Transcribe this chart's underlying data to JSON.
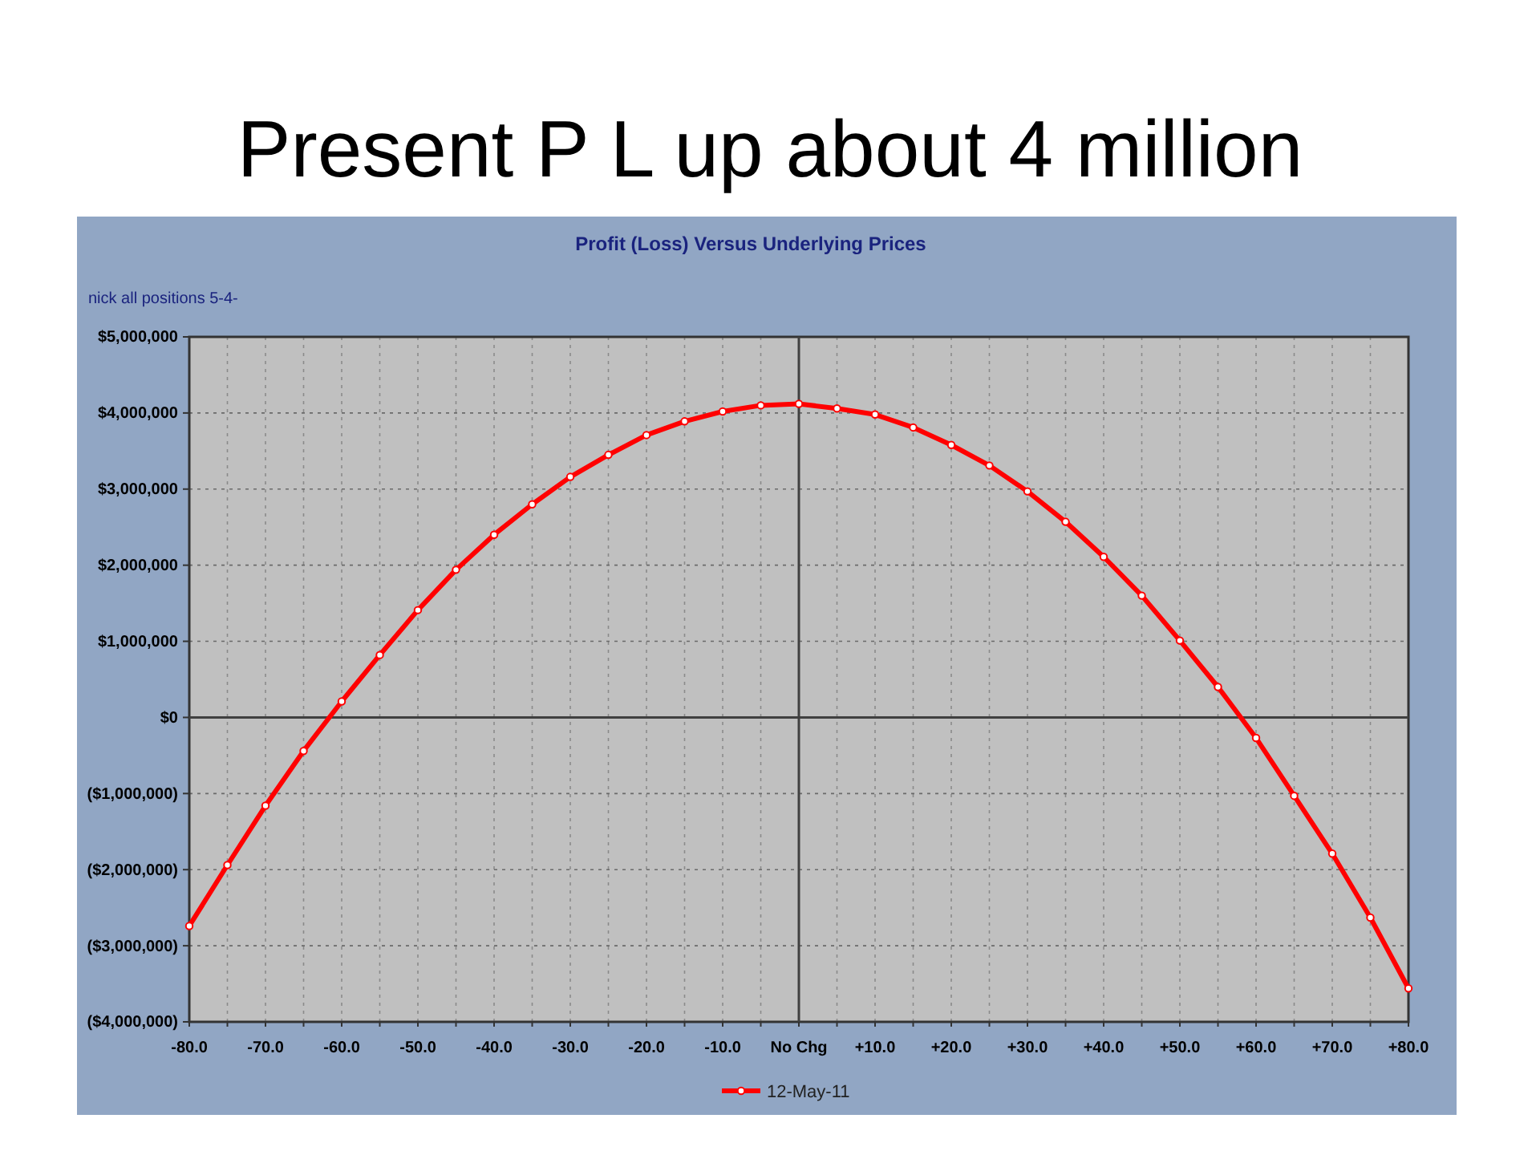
{
  "chart_data": {
    "type": "line",
    "title": "Present P L up about 4 million",
    "subtitle": "Profit (Loss) Versus Underlying Prices",
    "annotations": [
      "nick all positions 5-4-"
    ],
    "x": [
      -80,
      -75,
      -70,
      -65,
      -60,
      -55,
      -50,
      -45,
      -40,
      -35,
      -30,
      -25,
      -20,
      -15,
      -10,
      -5,
      0,
      5,
      10,
      15,
      20,
      25,
      30,
      35,
      40,
      45,
      50,
      55,
      60,
      65,
      70,
      75,
      80
    ],
    "series": [
      {
        "name": "12-May-11",
        "color": "#ff0000",
        "values": [
          -2740000,
          -1940000,
          -1160000,
          -440000,
          210000,
          820000,
          1410000,
          1940000,
          2400000,
          2800000,
          3160000,
          3450000,
          3710000,
          3890000,
          4020000,
          4100000,
          4120000,
          4060000,
          3980000,
          3810000,
          3580000,
          3310000,
          2970000,
          2570000,
          2110000,
          1600000,
          1010000,
          400000,
          -270000,
          -1030000,
          -1790000,
          -2630000,
          -3560000
        ]
      }
    ],
    "xlim": [
      -80,
      80
    ],
    "xticks": [
      {
        "value": -80,
        "label": "-80.0"
      },
      {
        "value": -75,
        "label": null
      },
      {
        "value": -70,
        "label": "-70.0"
      },
      {
        "value": -65,
        "label": null
      },
      {
        "value": -60,
        "label": "-60.0"
      },
      {
        "value": -55,
        "label": null
      },
      {
        "value": -50,
        "label": "-50.0"
      },
      {
        "value": -45,
        "label": null
      },
      {
        "value": -40,
        "label": "-40.0"
      },
      {
        "value": -35,
        "label": null
      },
      {
        "value": -30,
        "label": "-30.0"
      },
      {
        "value": -25,
        "label": null
      },
      {
        "value": -20,
        "label": "-20.0"
      },
      {
        "value": -15,
        "label": null
      },
      {
        "value": -10,
        "label": "-10.0"
      },
      {
        "value": -5,
        "label": null
      },
      {
        "value": 0,
        "label": "No Chg"
      },
      {
        "value": 5,
        "label": null
      },
      {
        "value": 10,
        "label": "+10.0"
      },
      {
        "value": 15,
        "label": null
      },
      {
        "value": 20,
        "label": "+20.0"
      },
      {
        "value": 25,
        "label": null
      },
      {
        "value": 30,
        "label": "+30.0"
      },
      {
        "value": 35,
        "label": null
      },
      {
        "value": 40,
        "label": "+40.0"
      },
      {
        "value": 45,
        "label": null
      },
      {
        "value": 50,
        "label": "+50.0"
      },
      {
        "value": 55,
        "label": null
      },
      {
        "value": 60,
        "label": "+60.0"
      },
      {
        "value": 65,
        "label": null
      },
      {
        "value": 70,
        "label": "+70.0"
      },
      {
        "value": 75,
        "label": null
      },
      {
        "value": 80,
        "label": "+80.0"
      }
    ],
    "ylim": [
      -4000000,
      5000000
    ],
    "yticks": [
      {
        "value": -4000000,
        "label": "($4,000,000)"
      },
      {
        "value": -3000000,
        "label": "($3,000,000)"
      },
      {
        "value": -2000000,
        "label": "($2,000,000)"
      },
      {
        "value": -1000000,
        "label": "($1,000,000)"
      },
      {
        "value": 0,
        "label": "$0"
      },
      {
        "value": 1000000,
        "label": "$1,000,000"
      },
      {
        "value": 2000000,
        "label": "$2,000,000"
      },
      {
        "value": 3000000,
        "label": "$3,000,000"
      },
      {
        "value": 4000000,
        "label": "$4,000,000"
      },
      {
        "value": 5000000,
        "label": "$5,000,000"
      }
    ],
    "grid": true,
    "legend": "bottom",
    "marker": "circle",
    "line_style": "solid"
  }
}
